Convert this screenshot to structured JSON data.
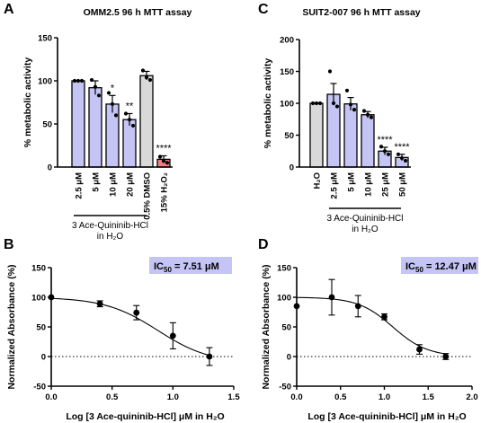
{
  "panels": [
    {
      "letter": "A"
    },
    {
      "letter": "C"
    },
    {
      "letter": "B"
    },
    {
      "letter": "D"
    }
  ],
  "chart_data": [
    {
      "type": "bar",
      "title": "OMM2.5 96 h MTT assay",
      "ylabel": "% metabolic activity",
      "ylim": [
        0,
        150
      ],
      "yticks": [
        "0",
        "50",
        "100",
        "150"
      ],
      "categories": [
        "2.5 μM",
        "5 μM",
        "10 μM",
        "20 μM",
        "0.5% DMSO",
        "15% H₂O₂"
      ],
      "values": [
        100,
        92,
        73,
        55,
        106,
        9
      ],
      "errors": [
        0,
        8,
        10,
        7,
        5,
        4
      ],
      "colors": [
        "#c5c5f5",
        "#c5c5f5",
        "#c5c5f5",
        "#c5c5f5",
        "#d9d9d9",
        "#f08080"
      ],
      "points": [
        [
          100,
          100,
          100
        ],
        [
          101,
          93,
          83
        ],
        [
          86,
          73,
          60
        ],
        [
          62,
          55,
          48
        ],
        [
          112,
          104,
          101
        ],
        [
          12,
          7,
          5
        ]
      ],
      "significance": [
        "",
        "",
        "*",
        "**",
        "",
        "****"
      ],
      "group_label": [
        "3 Ace-Quininib-HCl",
        "in H₂O"
      ]
    },
    {
      "type": "bar",
      "title": "SUIT2-007 96 h MTT assay",
      "ylabel": "% metabolic activity",
      "ylim": [
        0,
        200
      ],
      "yticks": [
        "0",
        "50",
        "100",
        "150",
        "200"
      ],
      "categories": [
        "H₂O",
        "2.5 μM",
        "5 μM",
        "10 μM",
        "25 μM",
        "50 μM"
      ],
      "values": [
        100,
        114,
        99,
        82,
        25,
        15
      ],
      "errors": [
        0,
        17,
        10,
        5,
        6,
        5
      ],
      "colors": [
        "#d9d9d9",
        "#c5c5f5",
        "#c5c5f5",
        "#c5c5f5",
        "#c5c5f5",
        "#c5c5f5"
      ],
      "points": [
        [
          100,
          100,
          100
        ],
        [
          150,
          100,
          95
        ],
        [
          120,
          98,
          90
        ],
        [
          88,
          82,
          78
        ],
        [
          32,
          25,
          20
        ],
        [
          20,
          14,
          10
        ]
      ],
      "significance": [
        "",
        "",
        "",
        "",
        "****",
        "****"
      ],
      "group_label": [
        "3 Ace-Quininib-HCl",
        "in H₂O"
      ]
    },
    {
      "type": "scatter",
      "xlabel": "Log [3 Ace-quininib-HCl] μM in H₂O",
      "ylabel": "Normalized Absorbance (%)",
      "xlim": [
        0,
        1.5
      ],
      "ylim": [
        -50,
        150
      ],
      "xticks": [
        "0.0",
        "0.5",
        "1.0",
        "1.5"
      ],
      "yticks": [
        "-50",
        "0",
        "50",
        "100",
        "150"
      ],
      "x": [
        0,
        0.4,
        0.7,
        1.0,
        1.3
      ],
      "y": [
        100,
        89,
        74,
        35,
        0
      ],
      "errors": [
        0,
        5,
        12,
        22,
        15
      ],
      "ic50_label": "IC",
      "ic50_sub": "50",
      "ic50_value": "= 7.51 μM",
      "fit": {
        "top": 100,
        "bottom": -12,
        "logic50": 0.876,
        "hill": 2.0
      }
    },
    {
      "type": "scatter",
      "xlabel": "Log [3 Ace-quininib-HCl] μM in H₂O",
      "ylabel": "Normalized Absorbance (%)",
      "xlim": [
        0,
        2.0
      ],
      "ylim": [
        -50,
        150
      ],
      "xticks": [
        "0.0",
        "0.5",
        "1.0",
        "1.5",
        "2.0"
      ],
      "yticks": [
        "-50",
        "0",
        "50",
        "100",
        "150"
      ],
      "x": [
        0,
        0.4,
        0.7,
        1.0,
        1.4,
        1.7
      ],
      "y": [
        85,
        100,
        85,
        67,
        12,
        0
      ],
      "errors": [
        0,
        30,
        18,
        5,
        8,
        5
      ],
      "ic50_label": "IC",
      "ic50_sub": "50",
      "ic50_value": "= 12.47 μM",
      "fit": {
        "top": 100,
        "bottom": 0,
        "logic50": 1.096,
        "hill": 2.2
      }
    }
  ]
}
